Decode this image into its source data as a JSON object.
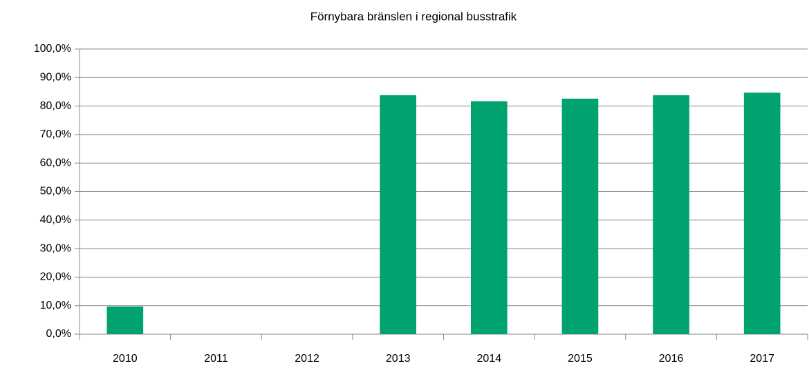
{
  "chart_data": {
    "type": "bar",
    "title": "Förnybara bränslen i regional busstrafik",
    "categories": [
      "2010",
      "2011",
      "2012",
      "2013",
      "2014",
      "2015",
      "2016",
      "2017"
    ],
    "values": [
      9.7,
      null,
      null,
      83.8,
      81.7,
      82.6,
      83.8,
      84.7
    ],
    "color": "#00a36f",
    "ylim": [
      0,
      100
    ],
    "yticks": [
      {
        "value": 0,
        "label": "0,0%"
      },
      {
        "value": 10,
        "label": "10,0%"
      },
      {
        "value": 20,
        "label": "20,0%"
      },
      {
        "value": 30,
        "label": "30,0%"
      },
      {
        "value": 40,
        "label": "40,0%"
      },
      {
        "value": 50,
        "label": "50,0%"
      },
      {
        "value": 60,
        "label": "60,0%"
      },
      {
        "value": 70,
        "label": "70,0%"
      },
      {
        "value": 80,
        "label": "80,0%"
      },
      {
        "value": 90,
        "label": "90,0%"
      },
      {
        "value": 100,
        "label": "100,0%"
      }
    ],
    "grid": true
  }
}
